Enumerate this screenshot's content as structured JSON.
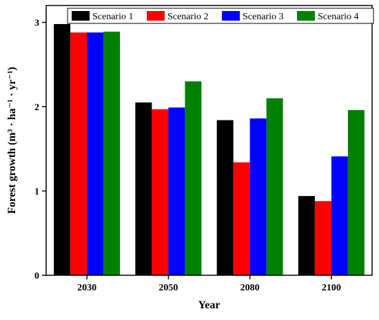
{
  "chart_data": {
    "type": "bar",
    "title": "",
    "xlabel": "Year",
    "ylabel": "Forest growth (m³ · ha⁻¹ · yr⁻¹)",
    "categories": [
      "2030",
      "2050",
      "2080",
      "2100"
    ],
    "ylim": [
      0,
      3.2
    ],
    "yticks": [
      0,
      1,
      2,
      3
    ],
    "grid": false,
    "legend": "top",
    "series": [
      {
        "name": "Scenario 1",
        "color": "#000000",
        "values": [
          2.98,
          2.05,
          1.84,
          0.94
        ]
      },
      {
        "name": "Scenario 2",
        "color": "#ff0000",
        "values": [
          2.88,
          1.97,
          1.34,
          0.88
        ]
      },
      {
        "name": "Scenario 3",
        "color": "#0000ff",
        "values": [
          2.88,
          1.99,
          1.86,
          1.41
        ]
      },
      {
        "name": "Scenario 4",
        "color": "#008000",
        "values": [
          2.89,
          2.3,
          2.1,
          1.96
        ]
      }
    ]
  }
}
